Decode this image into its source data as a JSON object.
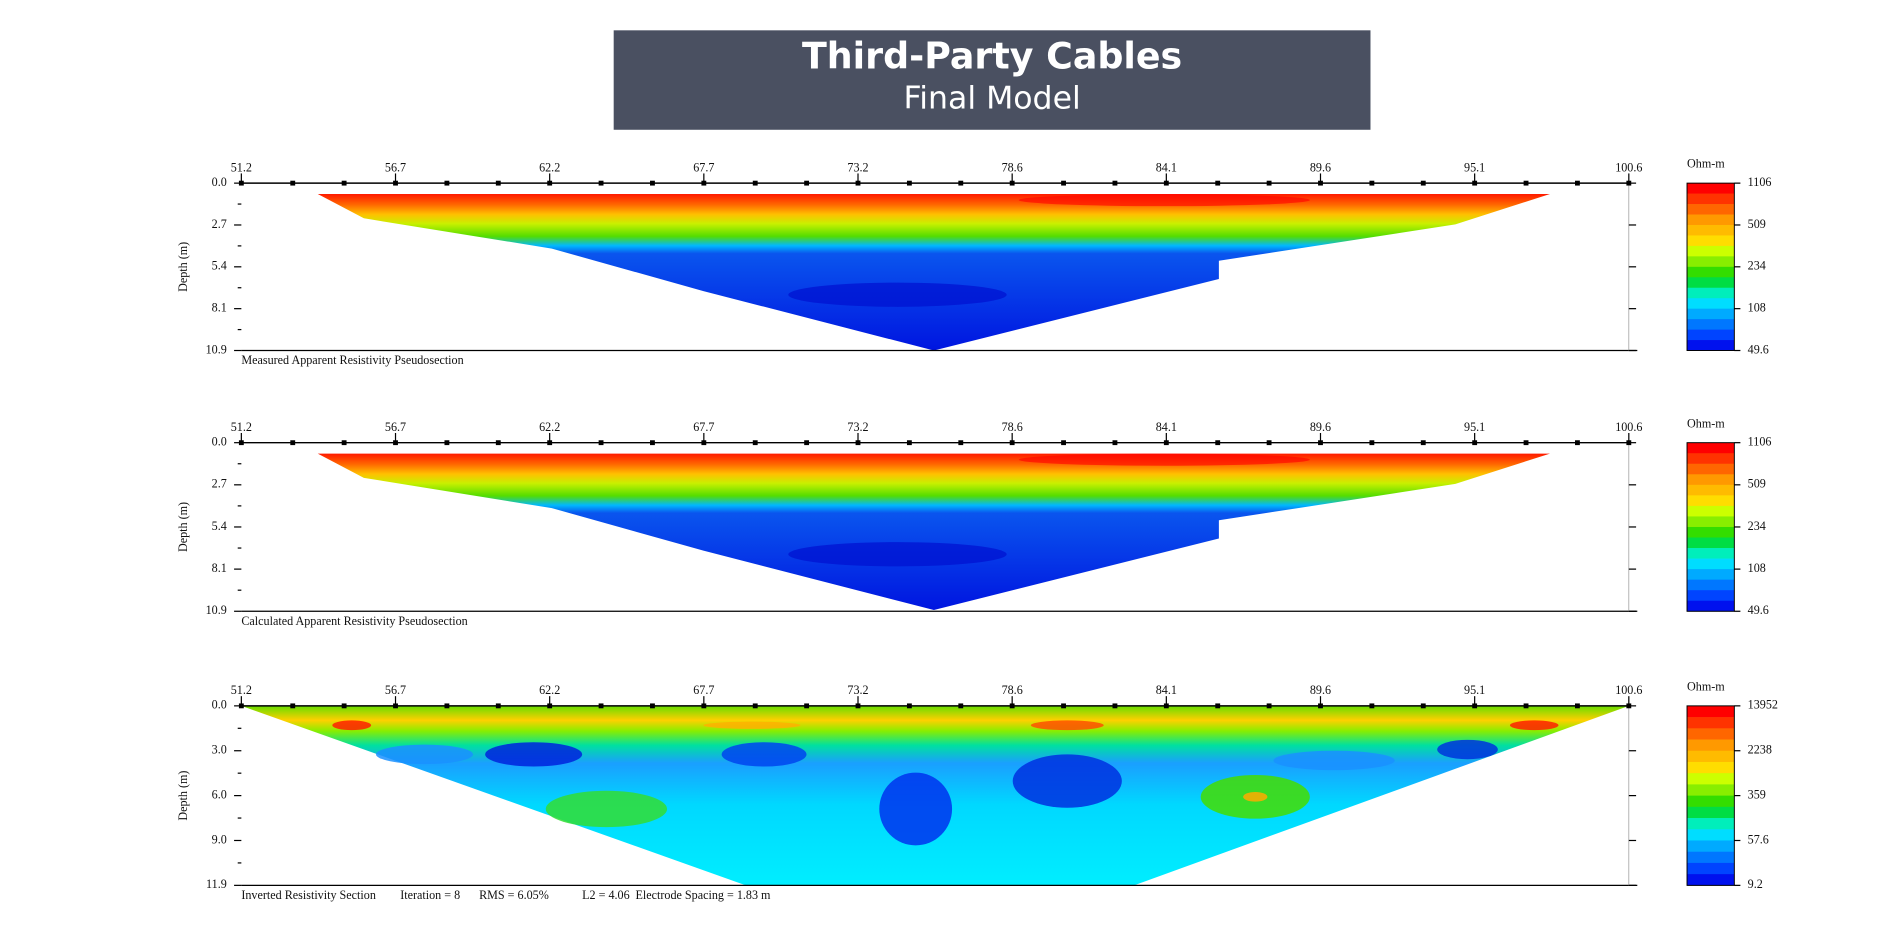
{
  "header": {
    "title": "Third-Party Cables",
    "subtitle": "Final Model"
  },
  "panels": [
    {
      "x_ticks": [
        "51.2",
        "56.7",
        "62.2",
        "67.7",
        "73.2",
        "78.6",
        "84.1",
        "89.6",
        "95.1",
        "100.6"
      ],
      "y_axis_label": "Depth (m)",
      "depth_ticks": [
        "0.0",
        "2.7",
        "5.4",
        "8.1",
        "10.9"
      ],
      "colorbar_unit": "Ohm-m",
      "colorbar_labels": [
        "1106",
        "509",
        "234",
        "108",
        "49.6"
      ],
      "caption": "Measured Apparent Resistivity Pseudosection"
    },
    {
      "x_ticks": [
        "51.2",
        "56.7",
        "62.2",
        "67.7",
        "73.2",
        "78.6",
        "84.1",
        "89.6",
        "95.1",
        "100.6"
      ],
      "y_axis_label": "Depth (m)",
      "depth_ticks": [
        "0.0",
        "2.7",
        "5.4",
        "8.1",
        "10.9"
      ],
      "colorbar_unit": "Ohm-m",
      "colorbar_labels": [
        "1106",
        "509",
        "234",
        "108",
        "49.6"
      ],
      "caption": "Calculated Apparent Resistivity Pseudosection"
    },
    {
      "x_ticks": [
        "51.2",
        "56.7",
        "62.2",
        "67.7",
        "73.2",
        "78.6",
        "84.1",
        "89.6",
        "95.1",
        "100.6"
      ],
      "y_axis_label": "Depth (m)",
      "depth_ticks": [
        "0.0",
        "3.0",
        "6.0",
        "9.0",
        "11.9"
      ],
      "colorbar_unit": "Ohm-m",
      "colorbar_labels": [
        "13952",
        "2238",
        "359",
        "57.6",
        "9.2"
      ],
      "caption": "Inverted Resistivity Section",
      "stats": [
        "Iteration = 8",
        "RMS = 6.05%",
        "L2 = 4.06",
        "Electrode Spacing = 1.83 m"
      ]
    }
  ]
}
